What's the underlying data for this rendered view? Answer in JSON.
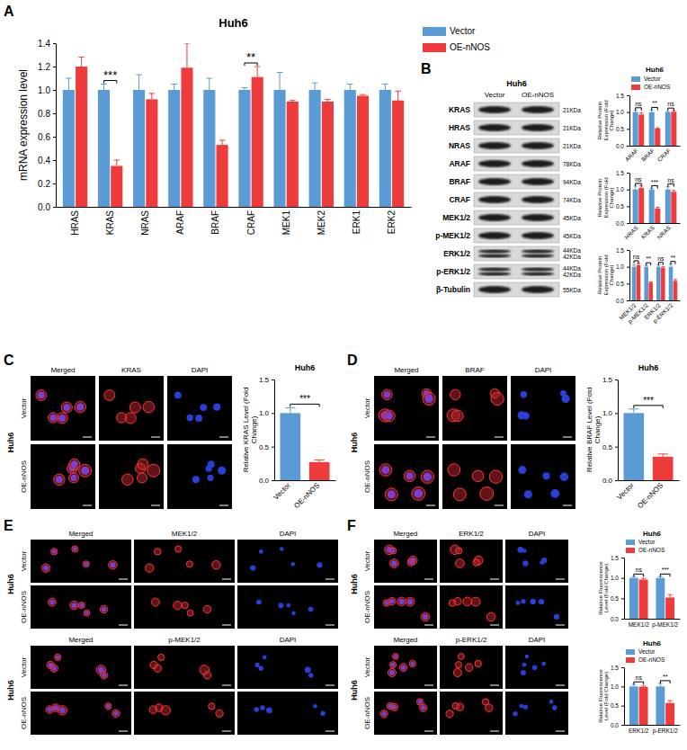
{
  "panel_letters": [
    "A",
    "B",
    "C",
    "D",
    "E",
    "F"
  ],
  "chart_data": [
    {
      "type": "bar",
      "title": "Huh6",
      "y_label": "mRNA expression level",
      "categories": [
        "HRAS",
        "KRAS",
        "NRAS",
        "ARAF",
        "BRAF",
        "CRAF",
        "MEK1",
        "MEK2",
        "ERK1",
        "ERK2"
      ],
      "series": [
        {
          "name": "Vector",
          "color": "#5b9bd5",
          "values": [
            1,
            1,
            1,
            1,
            1,
            1,
            1,
            1,
            1,
            1
          ],
          "errors": [
            0.1,
            0.05,
            0.13,
            0.05,
            0.1,
            0.02,
            0.15,
            0.06,
            0.05,
            0.05
          ]
        },
        {
          "name": "OE-nNOS",
          "color": "#ee3b3b",
          "values": [
            1.2,
            0.35,
            0.92,
            1.19,
            0.53,
            1.11,
            0.9,
            0.9,
            0.95,
            0.91
          ],
          "errors": [
            0.08,
            0.05,
            0.05,
            0.21,
            0.04,
            0.09,
            0.01,
            0.02,
            0.01,
            0.08
          ]
        }
      ],
      "significance": [
        null,
        "***",
        null,
        null,
        null,
        "**",
        null,
        null,
        null,
        null
      ],
      "ylim": [
        0,
        1.4
      ],
      "yticks": [
        {
          "value": 0,
          "label": "0.0"
        },
        {
          "value": 0.2,
          "label": "0.2"
        },
        {
          "value": 0.4,
          "label": "0.4"
        },
        {
          "value": 0.6,
          "label": "0.6"
        },
        {
          "value": 0.8,
          "label": "0.8"
        },
        {
          "value": 1,
          "label": "1.0"
        },
        {
          "value": 1.2,
          "label": "1.2"
        },
        {
          "value": 1.4,
          "label": "1.4"
        }
      ],
      "legend": "top-right"
    },
    {
      "type": "bar",
      "title": "Huh6",
      "y_label": "Relative Protein Expression (Fold Change)",
      "categories": [
        "ARAF",
        "BRAF",
        "CRAF"
      ],
      "series": [
        {
          "name": "Vector",
          "color": "#5b9bd5",
          "values": [
            1,
            1,
            1
          ],
          "errors": [
            0.05,
            0.06,
            0.02
          ]
        },
        {
          "name": "OE-nNOS",
          "color": "#ee3b3b",
          "values": [
            0.93,
            0.51,
            1.01
          ],
          "errors": [
            0.05,
            0.02,
            0.03
          ]
        }
      ],
      "significance": [
        "ns",
        "**",
        "ns"
      ],
      "ylim": [
        0,
        1.5
      ],
      "yticks": [
        {
          "value": 0,
          "label": "0.0"
        },
        {
          "value": 0.5,
          "label": "0.5"
        },
        {
          "value": 1,
          "label": "1.0"
        },
        {
          "value": 1.5,
          "label": "1.5"
        }
      ],
      "legend": "top-right"
    },
    {
      "type": "bar",
      "y_label": "Relative Protein Expression (Fold Change)",
      "categories": [
        "HRAS",
        "KRAS",
        "NRAS"
      ],
      "series": [
        {
          "color": "#5b9bd5",
          "values": [
            1,
            1,
            1
          ],
          "errors": [
            0.1,
            0.03,
            0.08
          ]
        },
        {
          "color": "#ee3b3b",
          "values": [
            1.04,
            0.43,
            0.93
          ],
          "errors": [
            0.06,
            0.04,
            0.04
          ]
        }
      ],
      "significance": [
        "ns",
        "***",
        "ns"
      ],
      "ylim": [
        0,
        1.5
      ],
      "yticks": [
        {
          "value": 0,
          "label": "0.0"
        },
        {
          "value": 0.5,
          "label": "0.5"
        },
        {
          "value": 1,
          "label": "1.0"
        },
        {
          "value": 1.5,
          "label": "1.5"
        }
      ]
    },
    {
      "type": "bar",
      "y_label": "Relative Protein Expression (Fold Change)",
      "categories": [
        "MEK1/2",
        "p-MEK1/2",
        "ERK1/2",
        "p-ERK1/2"
      ],
      "series": [
        {
          "color": "#5b9bd5",
          "values": [
            1,
            1,
            1,
            1
          ],
          "errors": [
            0.06,
            0.04,
            0.05,
            0.08
          ]
        },
        {
          "color": "#ee3b3b",
          "values": [
            1.05,
            0.53,
            0.97,
            0.58
          ],
          "errors": [
            0.05,
            0.02,
            0.03,
            0.04
          ]
        }
      ],
      "significance": [
        "ns",
        "**",
        "ns",
        "**"
      ],
      "ylim": [
        0,
        1.5
      ],
      "yticks": [
        {
          "value": 0,
          "label": "0.0"
        },
        {
          "value": 0.5,
          "label": "0.5"
        },
        {
          "value": 1,
          "label": "1.0"
        },
        {
          "value": 1.5,
          "label": "1.5"
        }
      ]
    },
    {
      "type": "bar",
      "title": "Huh6",
      "y_label": "Relative KRAS Level (Fold Change)",
      "categories": [
        "Vector",
        "OE-nNOS"
      ],
      "values": [
        1,
        0.27
      ],
      "errors": [
        0.08,
        0.03
      ],
      "colors": [
        "#5b9bd5",
        "#ee3b3b"
      ],
      "significance": "***",
      "ylim": [
        0,
        1.5
      ],
      "yticks": [
        {
          "value": 0,
          "label": "0.0"
        },
        {
          "value": 0.5,
          "label": "0.5"
        },
        {
          "value": 1,
          "label": "1.0"
        },
        {
          "value": 1.5,
          "label": "1.5"
        }
      ]
    },
    {
      "type": "bar",
      "title": "Huh6",
      "y_label": "Relative BRAF Level (Fold Change)",
      "categories": [
        "Vector",
        "OE-nNOS"
      ],
      "values": [
        1,
        0.35
      ],
      "errors": [
        0.06,
        0.04
      ],
      "colors": [
        "#5b9bd5",
        "#ee3b3b"
      ],
      "significance": "***",
      "ylim": [
        0,
        1.5
      ],
      "yticks": [
        {
          "value": 0,
          "label": "0.0"
        },
        {
          "value": 0.5,
          "label": "0.5"
        },
        {
          "value": 1,
          "label": "1.0"
        },
        {
          "value": 1.5,
          "label": "1.5"
        }
      ]
    },
    {
      "type": "bar",
      "title": "Huh6",
      "y_label": "Relative Fluorescence Level (Fold Change)",
      "categories": [
        "MEK1/2",
        "p-MEK1/2"
      ],
      "series": [
        {
          "name": "Vector",
          "color": "#5b9bd5",
          "values": [
            1,
            1
          ],
          "errors": [
            0.03,
            0.03
          ]
        },
        {
          "name": "OE-nNOS",
          "color": "#ee3b3b",
          "values": [
            0.96,
            0.52
          ],
          "errors": [
            0.03,
            0.07
          ]
        }
      ],
      "significance": [
        "ns",
        "***"
      ],
      "ylim": [
        0,
        1.5
      ],
      "yticks": [
        {
          "value": 0,
          "label": "0.0"
        },
        {
          "value": 0.5,
          "label": "0.5"
        },
        {
          "value": 1,
          "label": "1.0"
        },
        {
          "value": 1.5,
          "label": "1.5"
        }
      ],
      "legend": "top-right"
    },
    {
      "type": "bar",
      "title": "Huh6",
      "y_label": "Relative Fluorescence Level (Fold Change)",
      "categories": [
        "ERK1/2",
        "p-ERK1/2"
      ],
      "series": [
        {
          "name": "Vector",
          "color": "#5b9bd5",
          "values": [
            1,
            1
          ],
          "errors": [
            0.05,
            0.08
          ]
        },
        {
          "name": "OE-nNOS",
          "color": "#ee3b3b",
          "values": [
            0.99,
            0.57
          ],
          "errors": [
            0.02,
            0.06
          ]
        }
      ],
      "significance": [
        "ns",
        "**"
      ],
      "ylim": [
        0,
        1.5
      ],
      "yticks": [
        {
          "value": 0,
          "label": "0.0"
        },
        {
          "value": 0.5,
          "label": "0.5"
        },
        {
          "value": 1,
          "label": "1.0"
        },
        {
          "value": 1.5,
          "label": "1.5"
        }
      ],
      "legend": "top-right"
    }
  ],
  "blot": {
    "cell_line": "Huh6",
    "lanes": [
      "Vector",
      "OE-nNOS"
    ],
    "rows": [
      {
        "label": "KRAS",
        "sizes": [
          "21KDa"
        ]
      },
      {
        "label": "HRAS",
        "sizes": [
          "21KDa"
        ]
      },
      {
        "label": "NRAS",
        "sizes": [
          "21KDa"
        ]
      },
      {
        "label": "ARAF",
        "sizes": [
          "78KDa"
        ]
      },
      {
        "label": "BRAF",
        "sizes": [
          "94KDa"
        ]
      },
      {
        "label": "CRAF",
        "sizes": [
          "74KDa"
        ]
      },
      {
        "label": "MEK1/2",
        "sizes": [
          "45KDa"
        ]
      },
      {
        "label": "p-MEK1/2",
        "sizes": [
          "45KDa"
        ]
      },
      {
        "label": "ERK1/2",
        "sizes": [
          "44KDa",
          "42KDa"
        ]
      },
      {
        "label": "p-ERK1/2",
        "sizes": [
          "44KDa",
          "42KDa"
        ]
      },
      {
        "label": "β-Tubulin",
        "sizes": [
          "55KDa"
        ]
      }
    ]
  },
  "micrographs": [
    {
      "cell_line": "Huh6",
      "rows": [
        "Vector",
        "OE-nNOS"
      ],
      "columns": [
        "Merged",
        "KRAS",
        "DAPI"
      ]
    },
    {
      "cell_line": "Huh6",
      "rows": [
        "Vector",
        "OE-nNOS"
      ],
      "columns": [
        "Merged",
        "BRAF",
        "DAPI"
      ]
    },
    {
      "cell_line": "Huh6",
      "rows": [
        "Vector",
        "OE-nNOS"
      ],
      "columns": [
        "Merged",
        "MEK1/2",
        "DAPI"
      ]
    },
    {
      "cell_line": "Huh6",
      "rows": [
        "Vector",
        "OE-nNOS"
      ],
      "columns": [
        "Merged",
        "p-MEK1/2",
        "DAPI"
      ]
    },
    {
      "cell_line": "Huh6",
      "rows": [
        "Vector",
        "OE-nNOS"
      ],
      "columns": [
        "Merged",
        "ERK1/2",
        "DAPI"
      ]
    },
    {
      "cell_line": "Huh6",
      "rows": [
        "Vector",
        "OE-nNOS"
      ],
      "columns": [
        "Merged",
        "p-ERK1/2",
        "DAPI"
      ]
    }
  ]
}
